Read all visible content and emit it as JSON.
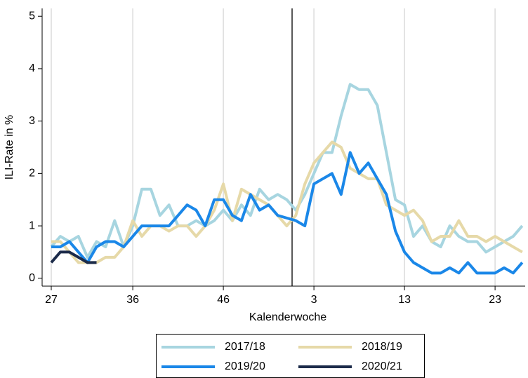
{
  "chart_data": {
    "type": "line",
    "y_label": "ILI-Rate in %",
    "x_label": "Kalenderwoche",
    "categories": [
      "27",
      null,
      null,
      null,
      null,
      null,
      null,
      null,
      null,
      "36",
      null,
      null,
      null,
      null,
      null,
      null,
      null,
      null,
      null,
      "46",
      null,
      null,
      null,
      null,
      null,
      null,
      null,
      null,
      null,
      "3",
      null,
      null,
      null,
      null,
      null,
      null,
      null,
      null,
      null,
      "13",
      null,
      null,
      null,
      null,
      null,
      null,
      null,
      null,
      null,
      "23",
      null,
      null,
      null
    ],
    "ylim": [
      -0.15,
      5.15
    ],
    "yticks": [
      0,
      1,
      2,
      3,
      4,
      5
    ],
    "grid": true,
    "legend": "bottom",
    "series": [
      {
        "name": "2017/18",
        "color": "#a7d5e0",
        "values": [
          0.6,
          0.8,
          0.7,
          0.8,
          0.4,
          0.7,
          0.6,
          1.1,
          0.6,
          1.0,
          1.7,
          1.7,
          1.2,
          1.4,
          1.0,
          1.0,
          1.1,
          1.0,
          1.1,
          1.3,
          1.1,
          1.4,
          1.2,
          1.7,
          1.5,
          1.6,
          1.5,
          1.3,
          1.6,
          2.0,
          2.4,
          2.4,
          3.1,
          3.7,
          3.6,
          3.6,
          3.3,
          2.4,
          1.5,
          1.4,
          0.8,
          1.0,
          0.7,
          0.6,
          1.0,
          0.8,
          0.7,
          0.7,
          0.5,
          0.6,
          0.7,
          0.8,
          1.0
        ]
      },
      {
        "name": "2018/19",
        "color": "#e6d9a8",
        "values": [
          0.7,
          0.7,
          0.5,
          0.3,
          0.3,
          0.3,
          0.4,
          0.4,
          0.6,
          1.1,
          0.8,
          1.0,
          1.0,
          0.9,
          1.0,
          1.0,
          0.8,
          1.0,
          1.3,
          1.8,
          1.1,
          1.7,
          1.6,
          1.5,
          1.4,
          1.2,
          1.0,
          1.2,
          1.8,
          2.2,
          2.4,
          2.6,
          2.5,
          2.1,
          2.0,
          1.9,
          1.9,
          1.4,
          1.3,
          1.2,
          1.3,
          1.1,
          0.7,
          0.8,
          0.8,
          1.1,
          0.8,
          0.8,
          0.7,
          0.8,
          0.7,
          0.6,
          0.5
        ]
      },
      {
        "name": "2019/20",
        "color": "#1a87e8",
        "values": [
          0.6,
          0.6,
          0.7,
          0.5,
          0.3,
          0.6,
          0.7,
          0.7,
          0.6,
          0.8,
          1.0,
          1.0,
          1.0,
          1.0,
          1.2,
          1.4,
          1.3,
          1.0,
          1.5,
          1.5,
          1.2,
          1.1,
          1.6,
          1.3,
          1.4,
          1.2,
          1.15,
          1.1,
          1.0,
          1.8,
          1.9,
          2.0,
          1.6,
          2.4,
          2.0,
          2.2,
          1.9,
          1.6,
          0.9,
          0.5,
          0.3,
          0.2,
          0.1,
          0.1,
          0.2,
          0.1,
          0.3,
          0.1,
          0.1,
          0.1,
          0.2,
          0.1,
          0.3
        ]
      },
      {
        "name": "2020/21",
        "color": "#1c2b4a",
        "values": [
          0.3,
          0.5,
          0.5,
          0.4,
          0.3,
          0.3,
          null,
          null,
          null,
          null,
          null,
          null,
          null,
          null,
          null,
          null,
          null,
          null,
          null,
          null,
          null,
          null,
          null,
          null,
          null,
          null,
          null,
          null,
          null,
          null,
          null,
          null,
          null,
          null,
          null,
          null,
          null,
          null,
          null,
          null,
          null,
          null,
          null,
          null,
          null,
          null,
          null,
          null,
          null,
          null,
          null,
          null,
          null
        ]
      }
    ]
  }
}
